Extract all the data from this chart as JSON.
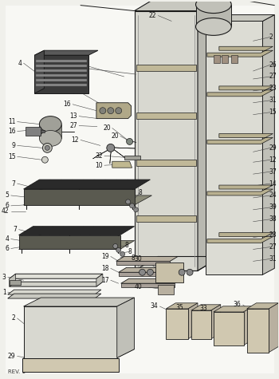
{
  "title": "",
  "bg_color": "#f0f0eb",
  "line_color": "#1a1a1a",
  "label_color": "#111111",
  "figsize": [
    3.5,
    4.75
  ],
  "dpi": 100,
  "rev": "REV. 1"
}
